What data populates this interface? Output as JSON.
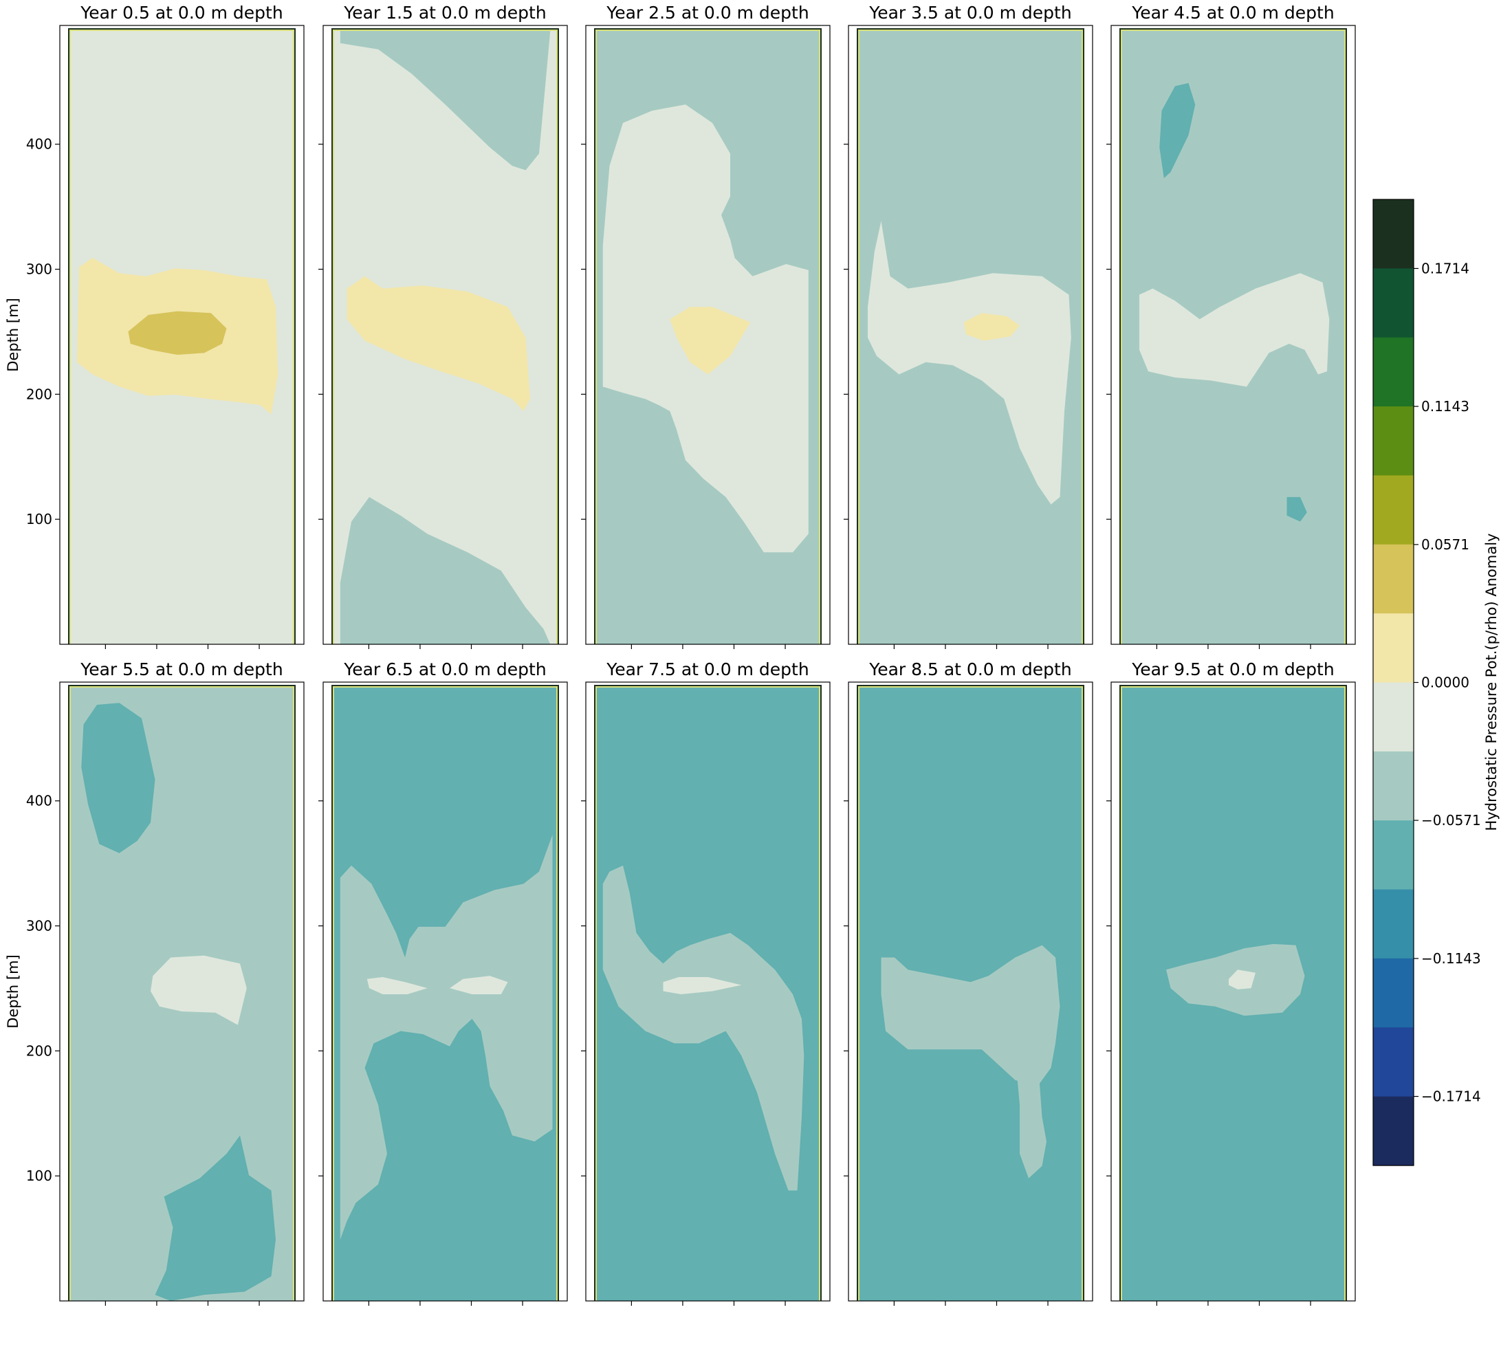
{
  "chart_data": {
    "type": "heatmap",
    "panels": [
      {
        "title": "Year 0.5 at 0.0 m depth"
      },
      {
        "title": "Year 1.5 at 0.0 m depth"
      },
      {
        "title": "Year 2.5 at 0.0 m depth"
      },
      {
        "title": "Year 3.5 at 0.0 m depth"
      },
      {
        "title": "Year 4.5 at 0.0 m depth"
      },
      {
        "title": "Year 5.5 at 0.0 m depth"
      },
      {
        "title": "Year 6.5 at 0.0 m depth"
      },
      {
        "title": "Year 7.5 at 0.0 m depth"
      },
      {
        "title": "Year 8.5 at 0.0 m depth"
      },
      {
        "title": "Year 9.5 at 0.0 m depth"
      }
    ],
    "ylabel": "Depth [m]",
    "ylim": [
      0,
      495
    ],
    "yticks": [
      "100",
      "200",
      "300",
      "400"
    ],
    "colorbar": {
      "label": "Hydrostatic Pressure Pot.(p/rho) Anomaly",
      "ticks": [
        "0.1714",
        "0.1143",
        "0.0571",
        "0.0000",
        "−0.0571",
        "−0.1143",
        "−0.1714"
      ],
      "range": [
        -0.2,
        0.2
      ],
      "levels": 14,
      "colors": [
        "#1c2b5e",
        "#21479a",
        "#1f6aa6",
        "#358fa9",
        "#62b0b0",
        "#a6cac2",
        "#dfe7dc",
        "#f2e6a9",
        "#d6c35a",
        "#a1a920",
        "#5c8e13",
        "#1f7426",
        "#115432",
        "#1c3020"
      ]
    }
  }
}
